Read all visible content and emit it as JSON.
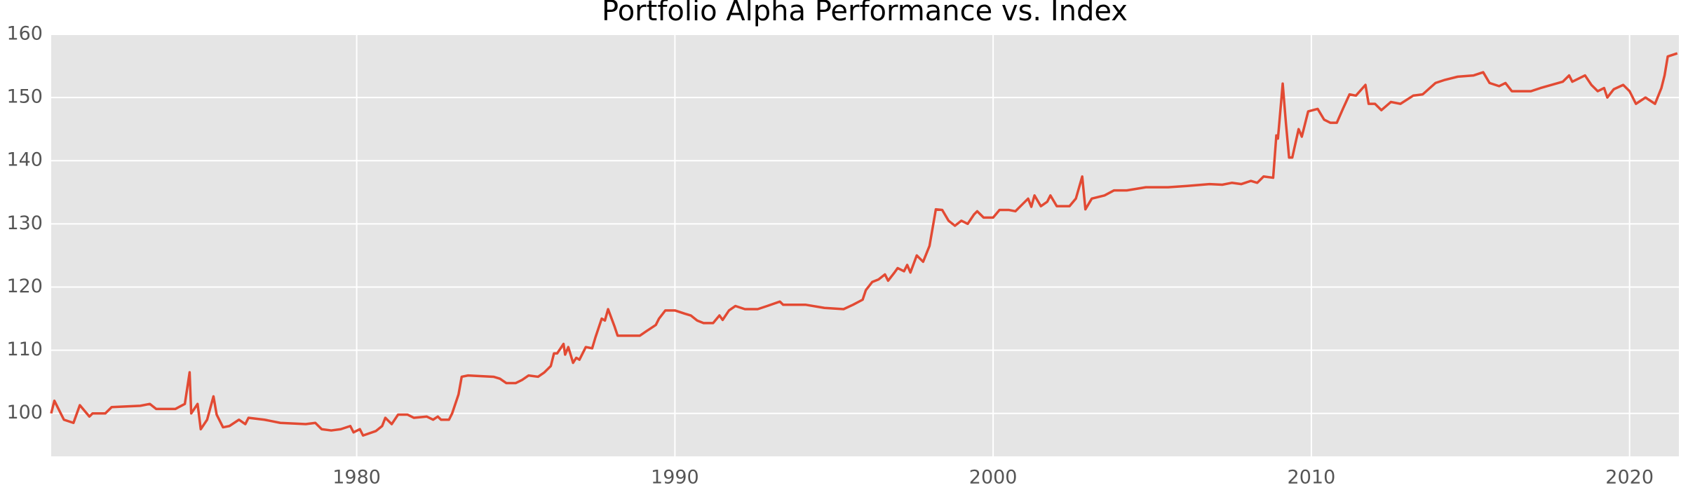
{
  "chart_data": {
    "type": "line",
    "title": "Portfolio Alpha Performance vs. Index",
    "x": [
      1970.4,
      1970.5,
      1970.8,
      1971.1,
      1971.3,
      1971.6,
      1971.7,
      1972.1,
      1972.3,
      1973.2,
      1973.5,
      1973.7,
      1974.3,
      1974.6,
      1974.75,
      1974.8,
      1975.0,
      1975.1,
      1975.3,
      1975.5,
      1975.6,
      1975.8,
      1976.0,
      1976.3,
      1976.5,
      1976.6,
      1977.1,
      1977.4,
      1977.6,
      1978.4,
      1978.7,
      1978.9,
      1979.2,
      1979.5,
      1979.8,
      1979.9,
      1980.1,
      1980.2,
      1980.6,
      1980.8,
      1980.9,
      1981.1,
      1981.3,
      1981.6,
      1981.8,
      1982.2,
      1982.4,
      1982.55,
      1982.65,
      1982.9,
      1983.0,
      1983.2,
      1983.3,
      1983.5,
      1984.3,
      1984.5,
      1984.7,
      1985.0,
      1985.2,
      1985.4,
      1985.7,
      1985.9,
      1986.1,
      1986.2,
      1986.3,
      1986.5,
      1986.55,
      1986.65,
      1986.8,
      1986.9,
      1987.0,
      1987.2,
      1987.4,
      1987.5,
      1987.7,
      1987.8,
      1987.9,
      1988.1,
      1988.2,
      1988.6,
      1988.9,
      1989.1,
      1989.4,
      1989.5,
      1989.7,
      1990.0,
      1990.3,
      1990.5,
      1990.7,
      1990.9,
      1991.2,
      1991.4,
      1991.5,
      1991.7,
      1991.9,
      1992.2,
      1992.6,
      1992.9,
      1993.3,
      1993.4,
      1994.1,
      1994.7,
      1995.3,
      1995.6,
      1995.9,
      1996.0,
      1996.2,
      1996.4,
      1996.6,
      1996.7,
      1996.9,
      1997.0,
      1997.2,
      1997.3,
      1997.4,
      1997.6,
      1997.8,
      1998.0,
      1998.2,
      1998.4,
      1998.6,
      1998.8,
      1999.0,
      1999.2,
      1999.4,
      1999.5,
      1999.7,
      2000.0,
      2000.2,
      2000.5,
      2000.7,
      2000.9,
      2001.1,
      2001.2,
      2001.3,
      2001.5,
      2001.7,
      2001.8,
      2002.0,
      2002.4,
      2002.6,
      2002.8,
      2002.9,
      2003.1,
      2003.5,
      2003.8,
      2004.2,
      2004.8,
      2005.5,
      2006.1,
      2006.8,
      2007.2,
      2007.5,
      2007.8,
      2008.1,
      2008.3,
      2008.5,
      2008.8,
      2008.9,
      2008.95,
      2009.1,
      2009.2,
      2009.3,
      2009.4,
      2009.6,
      2009.7,
      2009.9,
      2010.2,
      2010.4,
      2010.6,
      2010.8,
      2011.0,
      2011.2,
      2011.4,
      2011.7,
      2011.8,
      2012.0,
      2012.2,
      2012.5,
      2012.8,
      2013.2,
      2013.5,
      2013.9,
      2014.2,
      2014.6,
      2015.1,
      2015.4,
      2015.6,
      2015.9,
      2016.1,
      2016.3,
      2016.9,
      2017.2,
      2017.9,
      2018.1,
      2018.2,
      2018.6,
      2018.8,
      2019.0,
      2019.2,
      2019.3,
      2019.5,
      2019.8,
      2020.0,
      2020.2,
      2020.5,
      2020.8,
      2021.0,
      2021.1,
      2021.2,
      2021.5
    ],
    "series": [
      {
        "name": "Portfolio",
        "color": "#e24a33",
        "values": [
          100,
          102,
          99,
          98.5,
          101.3,
          99.5,
          100,
          100,
          101,
          101.2,
          101.5,
          100.7,
          100.7,
          101.5,
          106.5,
          100,
          101.5,
          97.5,
          99,
          102.7,
          99.8,
          97.8,
          98,
          99,
          98.3,
          99.3,
          99,
          98.7,
          98.5,
          98.3,
          98.5,
          97.5,
          97.3,
          97.5,
          98,
          97,
          97.5,
          96.5,
          97.2,
          98,
          99.3,
          98.3,
          99.8,
          99.8,
          99.3,
          99.5,
          99,
          99.5,
          99,
          99,
          100,
          103,
          105.8,
          106,
          105.8,
          105.5,
          104.8,
          104.8,
          105.3,
          106,
          105.8,
          106.5,
          107.5,
          109.5,
          109.5,
          111,
          109.3,
          110.5,
          108,
          108.8,
          108.5,
          110.5,
          110.3,
          112,
          115,
          114.7,
          116.5,
          113.8,
          112.3,
          112.3,
          112.3,
          113,
          114,
          115,
          116.3,
          116.3,
          115.8,
          115.5,
          114.7,
          114.3,
          114.3,
          115.5,
          114.8,
          116.3,
          117,
          116.5,
          116.5,
          117,
          117.7,
          117.2,
          117.2,
          116.7,
          116.5,
          117.2,
          118,
          119.5,
          120.8,
          121.2,
          122,
          121,
          122.3,
          123,
          122.5,
          123.5,
          122.3,
          125,
          124,
          126.5,
          132.3,
          132.2,
          130.5,
          129.7,
          130.5,
          130,
          131.5,
          132,
          131,
          131,
          132.2,
          132.2,
          132,
          133,
          134,
          132.7,
          134.5,
          132.8,
          133.5,
          134.5,
          132.8,
          132.8,
          134,
          137.5,
          132.3,
          134,
          134.5,
          135.3,
          135.3,
          135.8,
          135.8,
          136,
          136.3,
          136.2,
          136.5,
          136.3,
          136.8,
          136.5,
          137.5,
          137.3,
          144,
          143.5,
          152.2,
          146,
          140.5,
          140.5,
          145,
          143.8,
          147.8,
          148.2,
          146.5,
          146,
          146,
          148.3,
          150.5,
          150.3,
          152,
          149,
          149,
          148,
          149.3,
          149,
          150.3,
          150.5,
          152.3,
          152.8,
          153.3,
          153.5,
          154,
          152.3,
          151.8,
          152.3,
          151,
          151,
          151.5,
          152.5,
          153.5,
          152.5,
          153.5,
          152,
          151,
          151.5,
          150,
          151.3,
          152,
          151,
          149,
          150,
          149,
          151.5,
          153.5,
          156.5,
          157
        ]
      }
    ],
    "xlim": [
      1970.4,
      2021.55
    ],
    "ylim": [
      93.2,
      160
    ],
    "xticks": [
      1980,
      1990,
      2000,
      2010,
      2020
    ],
    "yticks": [
      100,
      110,
      120,
      130,
      140,
      150,
      160
    ],
    "grid": true
  }
}
